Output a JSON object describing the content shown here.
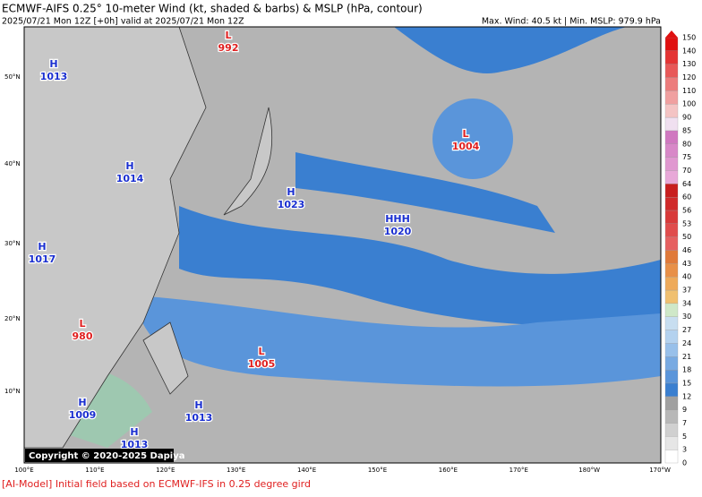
{
  "header": {
    "title": "ECMWF-AIFS 0.25° 10-meter Wind (kt, shaded & barbs) & MSLP (hPa, contour)",
    "subtitle": "2025/07/21 Mon 12Z [+0h] valid at 2025/07/21 Mon 12Z",
    "stats": "Max. Wind: 40.5 kt | Min. MSLP: 979.9 hPa"
  },
  "colorbar": {
    "levels": [
      0,
      3,
      5,
      7,
      9,
      12,
      15,
      18,
      21,
      24,
      27,
      30,
      34,
      37,
      40,
      43,
      46,
      50,
      53,
      56,
      60,
      64,
      70,
      75,
      80,
      85,
      90,
      100,
      110,
      120,
      130,
      140,
      150
    ],
    "colors": [
      "#ffffff",
      "#e6e6e6",
      "#d0d0d0",
      "#b8b8b8",
      "#a0a0a0",
      "#3a7fd0",
      "#5a95da",
      "#78aae2",
      "#98c0ea",
      "#b4d2ef",
      "#c8def0",
      "#cfe8c8",
      "#f0c070",
      "#eeaa5a",
      "#e89048",
      "#e07a3a",
      "#e66060",
      "#e04c4c",
      "#d83a3a",
      "#d02a2a",
      "#c81e1e",
      "#e8a8d8",
      "#e098d0",
      "#d888c8",
      "#d078c0",
      "#f0e0f0",
      "#f4c4c4",
      "#f0a0a0",
      "#ec7c7c",
      "#e85858",
      "#e43434",
      "#e01010"
    ]
  },
  "map": {
    "lat_labels": [
      "50°N",
      "40°N",
      "30°N",
      "20°N",
      "10°N"
    ],
    "lon_labels": [
      "100°E",
      "110°E",
      "120°E",
      "130°E",
      "140°E",
      "150°E",
      "160°E",
      "170°E",
      "180°W",
      "170°W"
    ],
    "centers": [
      {
        "type": "H",
        "value": "1013"
      },
      {
        "type": "L",
        "value": "992"
      },
      {
        "type": "H",
        "value": "1014"
      },
      {
        "type": "H",
        "value": "1017"
      },
      {
        "type": "H",
        "value": "1023"
      },
      {
        "type": "L",
        "value": "1004"
      },
      {
        "type": "HHH",
        "value": "1020"
      },
      {
        "type": "L",
        "value": "980"
      },
      {
        "type": "L",
        "value": "1005"
      },
      {
        "type": "H",
        "value": "1009"
      },
      {
        "type": "H",
        "value": "1013"
      },
      {
        "type": "H",
        "value": "1013"
      }
    ],
    "copyright": "Copyright © 2020-2025 Dapiya"
  },
  "footer": "[AI-Model] Initial field based on ECMWF-IFS in 0.25 degree gird"
}
